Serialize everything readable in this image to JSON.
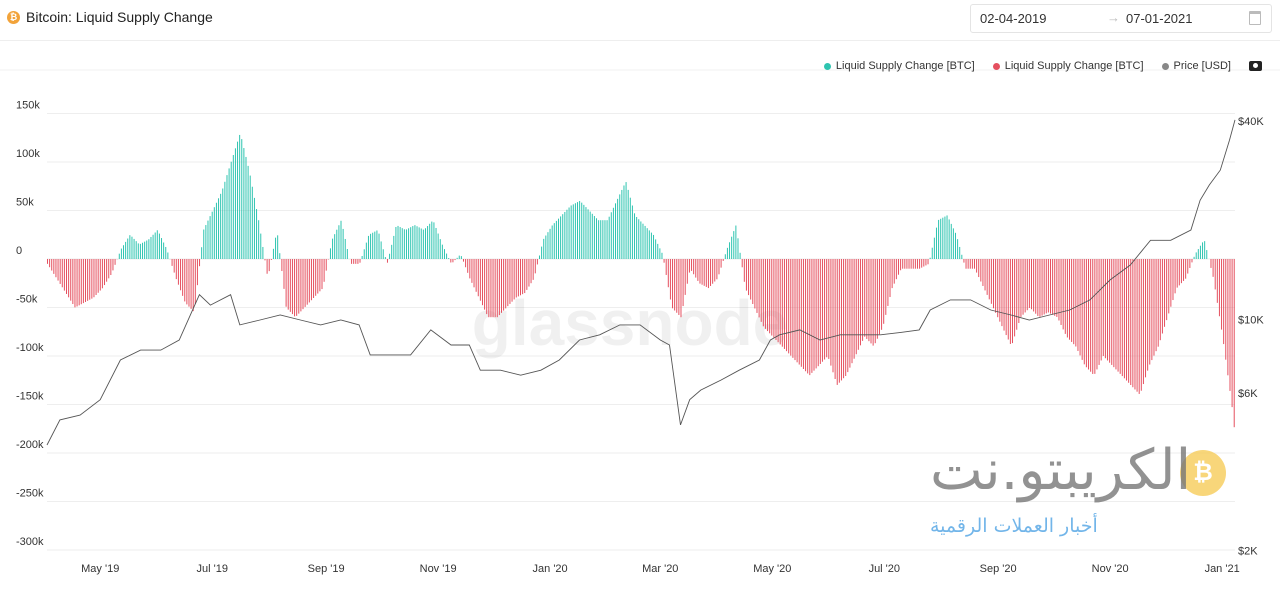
{
  "header": {
    "title": "Bitcoin: Liquid Supply Change",
    "date_from": "02-04-2019",
    "date_arrow": "→",
    "date_to": "07-01-2021"
  },
  "legend": [
    {
      "label": "Liquid Supply Change [BTC]",
      "color": "#2ec4b0"
    },
    {
      "label": "Liquid Supply Change [BTC]",
      "color": "#e5505f"
    },
    {
      "label": "Price [USD]",
      "color": "#888888"
    }
  ],
  "watermark": "glassnode",
  "logo": {
    "text": "الكريبتو.نت",
    "subtitle": "أخبار العملات الرقمية"
  },
  "chart_data": {
    "type": "bar",
    "title": "Bitcoin: Liquid Supply Change",
    "start_date": "2019-04-02",
    "end_date": "2021-01-07",
    "bar_step_days": 5,
    "positive_color": "#2ec4b0",
    "negative_color": "#e5505f",
    "y_left": {
      "ticks": [
        150000,
        100000,
        50000,
        0,
        -50000,
        -100000,
        -150000,
        -200000,
        -250000,
        -300000
      ],
      "tick_labels": [
        "150k",
        "100k",
        "50k",
        "0",
        "-50k",
        "-100k",
        "-150k",
        "-200k",
        "-250k",
        "-300k"
      ],
      "range": [
        -300000,
        150000
      ]
    },
    "y_right": {
      "scale": "log",
      "ticks": [
        40000,
        10000,
        6000,
        2000
      ],
      "tick_labels": [
        "$40K",
        "$10K",
        "$6K",
        "$2K"
      ],
      "range": [
        2000,
        40000
      ]
    },
    "x_ticks": [
      {
        "label": "May '19",
        "day": 29
      },
      {
        "label": "Jul '19",
        "day": 90
      },
      {
        "label": "Sep '19",
        "day": 152
      },
      {
        "label": "Nov '19",
        "day": 213
      },
      {
        "label": "Jan '20",
        "day": 274
      },
      {
        "label": "Mar '20",
        "day": 334
      },
      {
        "label": "May '20",
        "day": 395
      },
      {
        "label": "Jul '20",
        "day": 456
      },
      {
        "label": "Sep '20",
        "day": 518
      },
      {
        "label": "Nov '20",
        "day": 579
      },
      {
        "label": "Jan '21",
        "day": 640
      }
    ],
    "liquid_supply_change_k": [
      -5,
      -20,
      -35,
      -50,
      -45,
      -40,
      -30,
      -15,
      10,
      25,
      15,
      20,
      30,
      10,
      -20,
      -45,
      -55,
      30,
      50,
      70,
      100,
      130,
      90,
      40,
      -20,
      30,
      -50,
      -60,
      -50,
      -40,
      -30,
      20,
      40,
      -5,
      -5,
      25,
      30,
      -5,
      35,
      30,
      35,
      30,
      40,
      15,
      -5,
      5,
      -20,
      -40,
      -60,
      -60,
      -50,
      -40,
      -35,
      -20,
      20,
      35,
      45,
      55,
      60,
      50,
      40,
      40,
      60,
      80,
      45,
      35,
      25,
      5,
      -50,
      -60,
      -10,
      -25,
      -30,
      -20,
      10,
      35,
      -30,
      -50,
      -70,
      -80,
      -90,
      -100,
      -110,
      -120,
      -110,
      -100,
      -130,
      -120,
      -100,
      -80,
      -90,
      -70,
      -30,
      -10,
      -10,
      -10,
      -5,
      40,
      45,
      25,
      -10,
      -10,
      -30,
      -50,
      -70,
      -90,
      -60,
      -50,
      -60,
      -55,
      -60,
      -80,
      -90,
      -110,
      -120,
      -100,
      -110,
      -120,
      -130,
      -140,
      -110,
      -90,
      -60,
      -30,
      -20,
      5,
      20,
      -20,
      -80,
      -150,
      -240
    ],
    "price_series": [
      [
        0,
        4170
      ],
      [
        7,
        4970
      ],
      [
        18,
        5140
      ],
      [
        29,
        5720
      ],
      [
        40,
        7550
      ],
      [
        51,
        8090
      ],
      [
        62,
        8090
      ],
      [
        72,
        8680
      ],
      [
        83,
        11900
      ],
      [
        89,
        11070
      ],
      [
        100,
        11900
      ],
      [
        105,
        9640
      ],
      [
        116,
        9980
      ],
      [
        127,
        10330
      ],
      [
        138,
        9980
      ],
      [
        149,
        9640
      ],
      [
        160,
        9980
      ],
      [
        170,
        9640
      ],
      [
        176,
        7820
      ],
      [
        187,
        7820
      ],
      [
        198,
        7820
      ],
      [
        209,
        9310
      ],
      [
        220,
        8380
      ],
      [
        230,
        8380
      ],
      [
        236,
        7030
      ],
      [
        247,
        7030
      ],
      [
        258,
        6790
      ],
      [
        269,
        7030
      ],
      [
        279,
        7550
      ],
      [
        290,
        8680
      ],
      [
        301,
        9000
      ],
      [
        312,
        9640
      ],
      [
        323,
        9640
      ],
      [
        334,
        8680
      ],
      [
        339,
        8380
      ],
      [
        345,
        4800
      ],
      [
        350,
        5720
      ],
      [
        356,
        6120
      ],
      [
        367,
        6560
      ],
      [
        377,
        7030
      ],
      [
        388,
        7550
      ],
      [
        394,
        8680
      ],
      [
        399,
        9000
      ],
      [
        410,
        9310
      ],
      [
        421,
        8680
      ],
      [
        432,
        9000
      ],
      [
        443,
        9000
      ],
      [
        454,
        9000
      ],
      [
        465,
        9150
      ],
      [
        475,
        9310
      ],
      [
        481,
        10700
      ],
      [
        492,
        11480
      ],
      [
        503,
        11480
      ],
      [
        514,
        10700
      ],
      [
        525,
        10330
      ],
      [
        535,
        9980
      ],
      [
        546,
        10330
      ],
      [
        557,
        10700
      ],
      [
        568,
        11480
      ],
      [
        579,
        13200
      ],
      [
        590,
        14650
      ],
      [
        601,
        17400
      ],
      [
        612,
        17400
      ],
      [
        623,
        18700
      ],
      [
        628,
        23000
      ],
      [
        633,
        25600
      ],
      [
        639,
        28400
      ],
      [
        644,
        35000
      ],
      [
        647,
        40300
      ]
    ]
  }
}
